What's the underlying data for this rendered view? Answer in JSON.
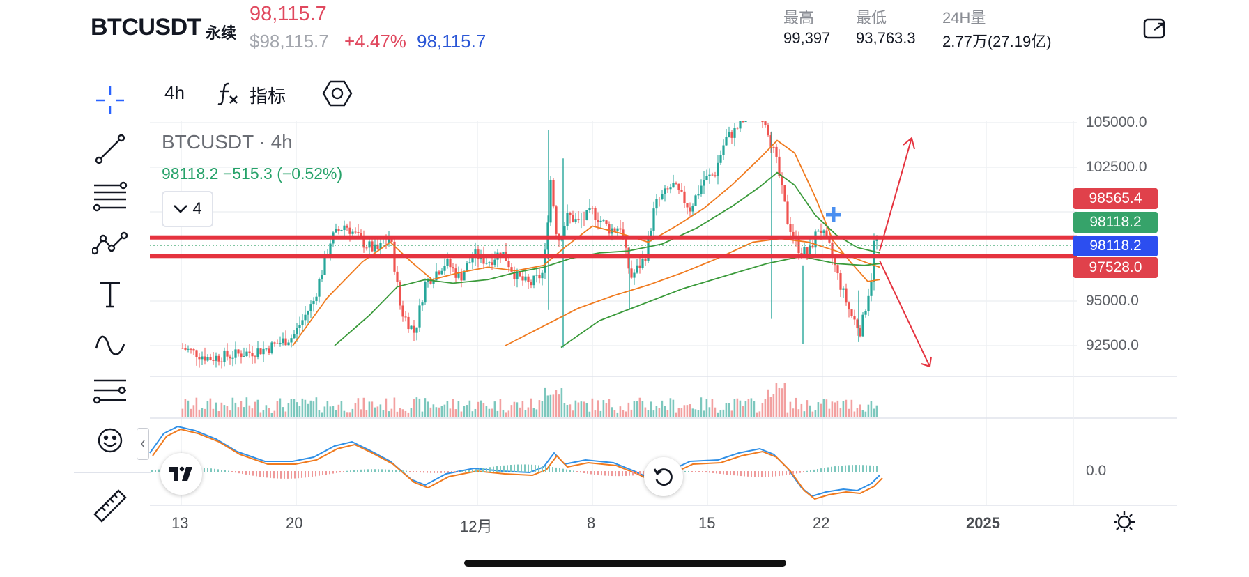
{
  "header": {
    "symbol": "BTCUSDT",
    "contract_type": "永续",
    "last_price": "98,115.7",
    "usd_price": "$98,115.7",
    "change_pct": "+4.47%",
    "mark_price": "98,115.7",
    "stats": [
      {
        "label": "最高",
        "value": "99,397"
      },
      {
        "label": "最低",
        "value": "93,763.3"
      },
      {
        "label": "24H量",
        "value": "2.77万(27.19亿)"
      }
    ],
    "share_icon": "share-icon"
  },
  "toolbar": {
    "interval": "4h",
    "indicators_label": "指标",
    "fx_icon": "function-icon",
    "settings_icon": "hexagon-settings-icon"
  },
  "left_tools": [
    "crosshair-icon",
    "trend-line-icon",
    "fib-lines-icon",
    "pattern-icon",
    "text-tool-icon",
    "brush-icon",
    "measure-lines-icon",
    "emoji-icon",
    "ruler-icon"
  ],
  "legend": {
    "title": "BTCUSDT · 4h",
    "values": "98118.2  −515.3 (−0.52%)",
    "collapsed_count": "4"
  },
  "price_axis": {
    "ticks": [
      "105000.0",
      "102500.0",
      "95000.0",
      "92500.0"
    ],
    "macd_zero": "0.0",
    "labels": [
      {
        "value": "98565.4",
        "color": "#e0414b"
      },
      {
        "value": "98118.2",
        "color": "#36a36a"
      },
      {
        "value": "98118.2",
        "color": "#2c4ef0"
      },
      {
        "value": "97528.0",
        "color": "#e0414b"
      }
    ]
  },
  "time_axis": [
    "13",
    "20",
    "12月",
    "8",
    "15",
    "22",
    "2025"
  ],
  "colors": {
    "up": "#26a69a",
    "down": "#ef5350",
    "hline": "#e5333f",
    "ma_orange": "#f07a1e",
    "ma_green": "#3a9a3a",
    "macd_blue": "#2f8fe6",
    "macd_orange": "#f07a1e"
  }
}
